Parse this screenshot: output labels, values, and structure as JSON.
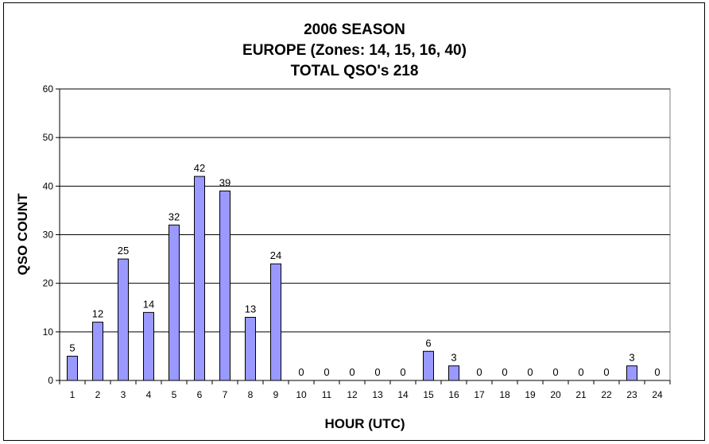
{
  "chart_data": {
    "type": "bar",
    "title_lines": [
      "2006 SEASON",
      "EUROPE (Zones: 14, 15, 16, 40)",
      "TOTAL QSO's 218"
    ],
    "xlabel": "HOUR (UTC)",
    "ylabel": "QSO COUNT",
    "ylim": [
      0,
      60
    ],
    "yticks": [
      "0",
      "10",
      "20",
      "30",
      "40",
      "50",
      "60"
    ],
    "grid": true,
    "categories": [
      "1",
      "2",
      "3",
      "4",
      "5",
      "6",
      "7",
      "8",
      "9",
      "10",
      "11",
      "12",
      "13",
      "14",
      "15",
      "16",
      "17",
      "18",
      "19",
      "20",
      "21",
      "22",
      "23",
      "24"
    ],
    "values": [
      5,
      12,
      25,
      14,
      32,
      42,
      39,
      13,
      24,
      0,
      0,
      0,
      0,
      0,
      6,
      3,
      0,
      0,
      0,
      0,
      0,
      0,
      3,
      0
    ],
    "bar_color": "#9999ff",
    "show_data_labels": true
  }
}
